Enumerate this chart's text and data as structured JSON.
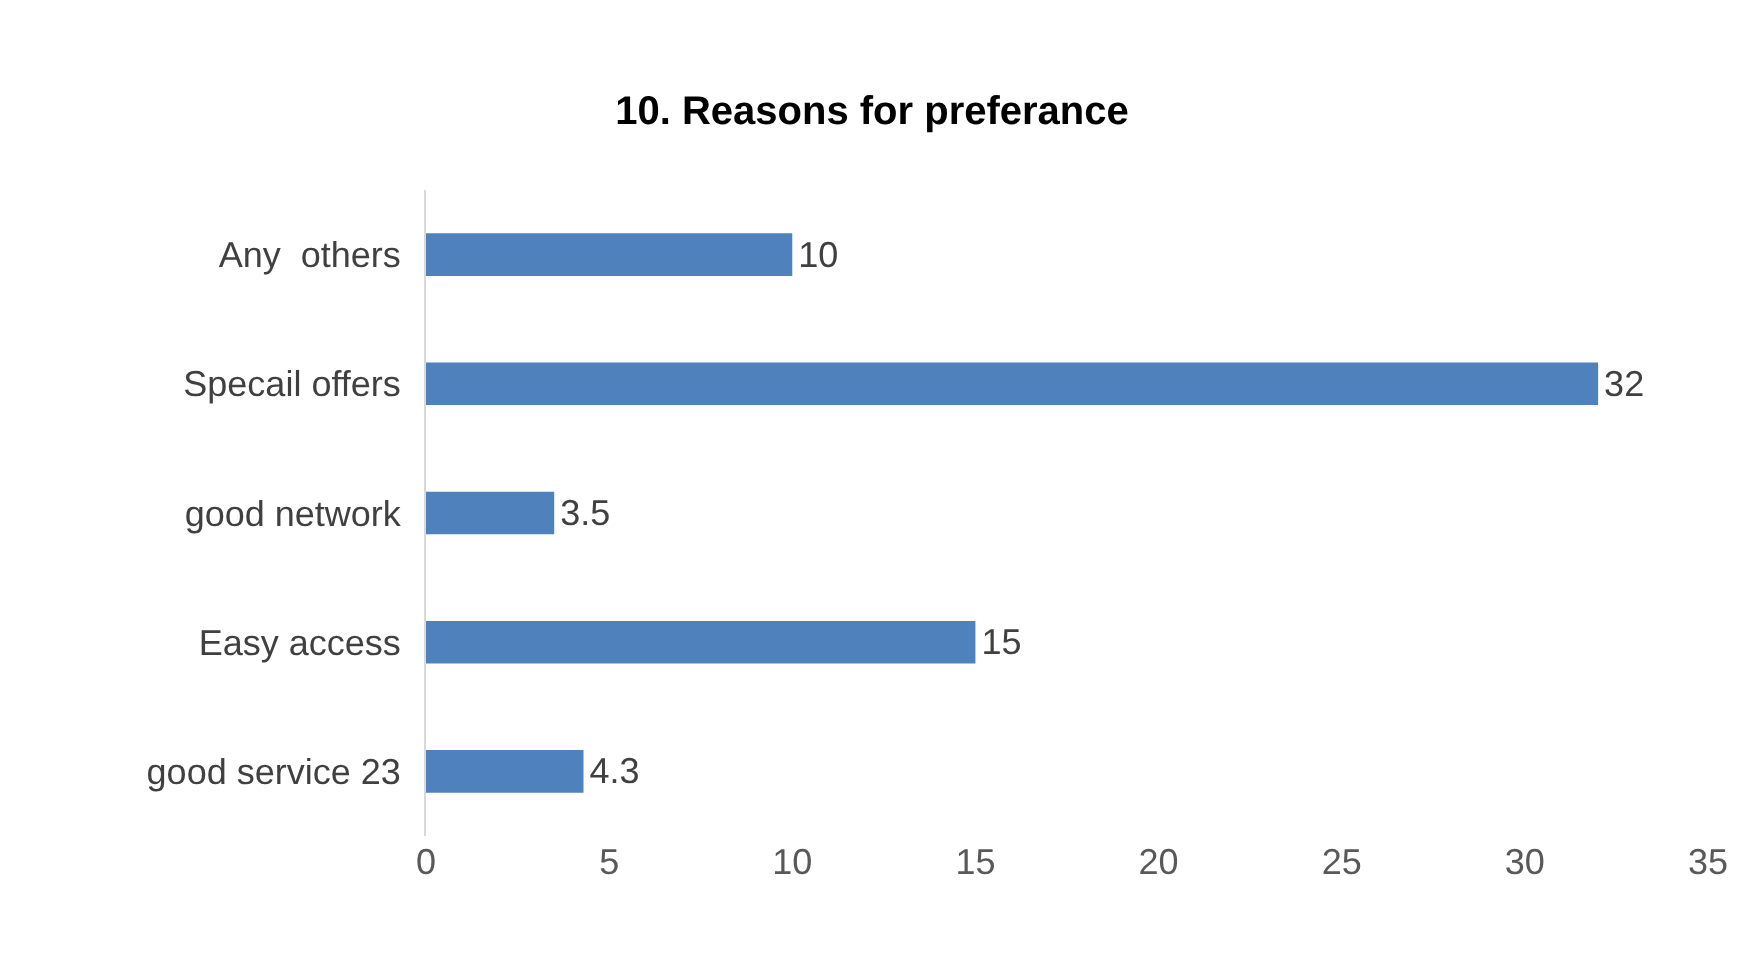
{
  "chart_data": {
    "type": "bar",
    "orientation": "horizontal",
    "title": "10. Reasons for preferance",
    "categories": [
      "Any  others",
      "Specail offers",
      "good network",
      "Easy access",
      "good service 23"
    ],
    "values": [
      10,
      32,
      3.5,
      15,
      4.3
    ],
    "color": "#4f81bd",
    "xlim": [
      0,
      35
    ],
    "xticks": [
      0,
      5,
      10,
      15,
      20,
      25,
      30,
      35
    ],
    "grid": false,
    "data_labels": true
  }
}
